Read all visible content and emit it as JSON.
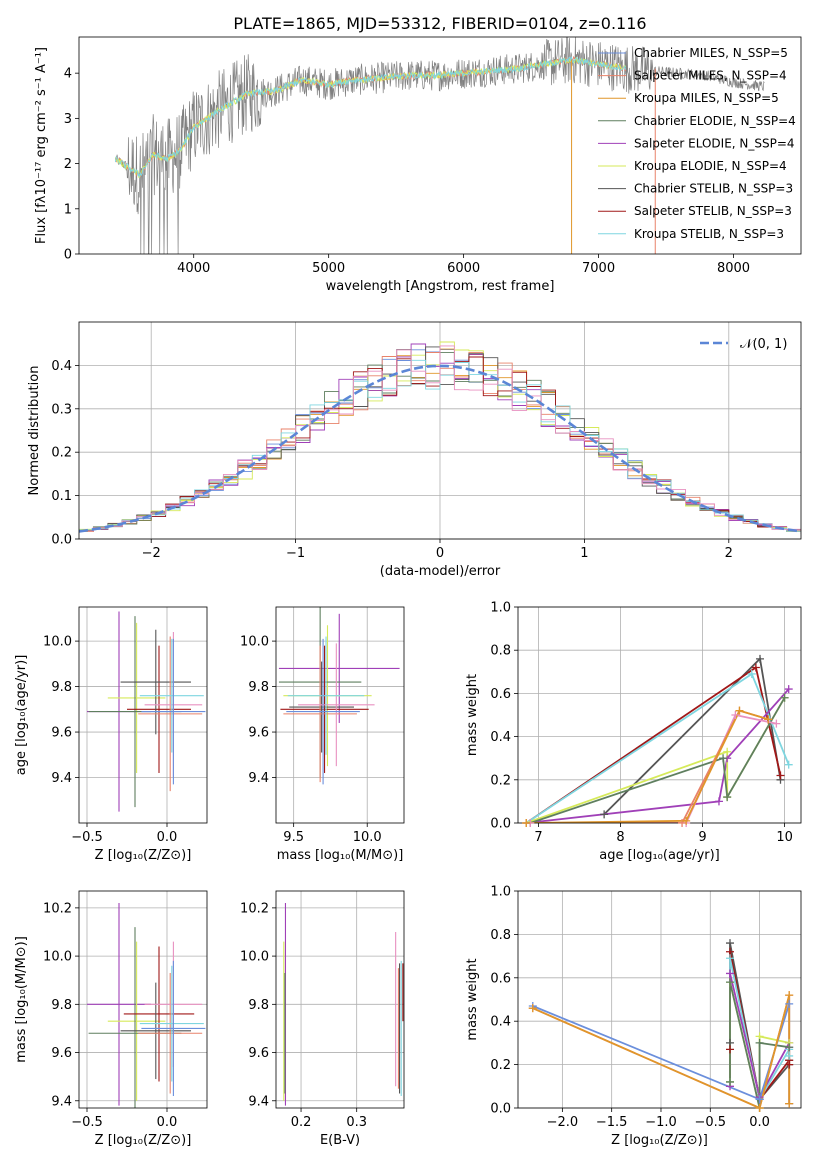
{
  "colors": {
    "chabrier_miles": "#6b8fdc",
    "salpeter_miles": "#e8826a",
    "kroupa_miles": "#e0962a",
    "chabrier_elodie": "#5f7f5f",
    "salpeter_elodie": "#a040b8",
    "kroupa_elodie": "#d6ea5a",
    "chabrier_stelib": "#555555",
    "salpeter_stelib": "#a01818",
    "kroupa_stelib": "#7fd6e0",
    "spectrum": "#808080",
    "pink": "#e890c0",
    "grid": "#b0b0b0",
    "normal": "#5b86d6"
  },
  "chart_data": [
    {
      "id": "spectrum",
      "type": "line",
      "title": "PLATE=1865, MJD=53312, FIBERID=0104, z=0.116",
      "xlabel": "wavelength [Angstrom, rest frame]",
      "ylabel": "Flux [fλ10⁻¹⁷ erg cm⁻² s⁻¹ A⁻¹]",
      "xlim": [
        3150,
        8500
      ],
      "ylim": [
        0,
        4.8
      ],
      "xticks": [
        4000,
        5000,
        6000,
        7000,
        8000
      ],
      "yticks": [
        0,
        1,
        2,
        3,
        4
      ],
      "legend": [
        {
          "label": "Chabrier MILES, N_SSP=5",
          "color_key": "chabrier_miles"
        },
        {
          "label": "Salpeter MILES, N_SSP=4",
          "color_key": "salpeter_miles"
        },
        {
          "label": "Kroupa MILES, N_SSP=5",
          "color_key": "kroupa_miles"
        },
        {
          "label": "Chabrier ELODIE, N_SSP=4",
          "color_key": "chabrier_elodie"
        },
        {
          "label": "Salpeter ELODIE, N_SSP=4",
          "color_key": "salpeter_elodie"
        },
        {
          "label": "Kroupa ELODIE, N_SSP=4",
          "color_key": "kroupa_elodie"
        },
        {
          "label": "Chabrier STELIB, N_SSP=3",
          "color_key": "chabrier_stelib"
        },
        {
          "label": "Salpeter STELIB, N_SSP=3",
          "color_key": "salpeter_stelib"
        },
        {
          "label": "Kroupa STELIB, N_SSP=3",
          "color_key": "kroupa_stelib"
        }
      ],
      "legend_position": "right",
      "grid": false,
      "data_x_range": [
        3420,
        8230
      ],
      "continuum": {
        "x": [
          3420,
          3600,
          3700,
          3800,
          3900,
          4000,
          4200,
          4400,
          4600,
          4800,
          5000,
          5200,
          5400,
          5600,
          5800,
          6000,
          6200,
          6400,
          6600,
          6800,
          7000,
          7200,
          7400,
          7600,
          7800,
          8000,
          8230
        ],
        "y": [
          2.1,
          1.75,
          2.2,
          2.1,
          2.3,
          2.8,
          3.2,
          3.55,
          3.6,
          3.85,
          3.75,
          3.85,
          3.9,
          3.95,
          3.95,
          4.0,
          4.05,
          4.1,
          4.2,
          4.3,
          4.2,
          4.1,
          4.05,
          4.0,
          3.95,
          3.8,
          3.7
        ]
      }
    },
    {
      "id": "residuals",
      "type": "line",
      "xlabel": "(data-model)/error",
      "ylabel": "Normed distribution",
      "xlim": [
        -2.5,
        2.5
      ],
      "ylim": [
        0,
        0.5
      ],
      "xticks": [
        -2,
        -1,
        0,
        1,
        2
      ],
      "xtick_labels": [
        "−2",
        "−1",
        "0",
        "1",
        "2"
      ],
      "yticks": [
        0.0,
        0.1,
        0.2,
        0.3,
        0.4
      ],
      "ytick_labels": [
        "0.0",
        "0.1",
        "0.2",
        "0.3",
        "0.4"
      ],
      "legend": [
        {
          "label": "𝒩(0, 1)",
          "color_key": "normal"
        }
      ],
      "legend_position": "top-right",
      "grid": true
    },
    {
      "id": "age_vs_Z",
      "type": "scatter",
      "xlabel": "Z [log₁₀(Z/Z⊙)]",
      "ylabel": "age  [log₁₀(age/yr)]",
      "xlim": [
        -0.55,
        0.25
      ],
      "ylim": [
        9.2,
        10.15
      ],
      "xticks": [
        -0.5,
        0.0
      ],
      "xtick_labels": [
        "−0.5",
        "0.0"
      ],
      "yticks": [
        9.4,
        9.6,
        9.8,
        10.0
      ],
      "ytick_labels": [
        "9.4",
        "9.6",
        "9.8",
        "10.0"
      ],
      "grid": true,
      "points": [
        {
          "color_key": "salpeter_elodie",
          "x": -0.3,
          "y": 9.69,
          "xerr": 0.2,
          "yerr": 0.44
        },
        {
          "color_key": "kroupa_elodie",
          "x": -0.19,
          "y": 9.75,
          "xerr": 0.18,
          "yerr": 0.33
        },
        {
          "color_key": "chabrier_elodie",
          "x": -0.2,
          "y": 9.69,
          "xerr": 0.29,
          "yerr": 0.42
        },
        {
          "color_key": "salpeter_stelib",
          "x": -0.05,
          "y": 9.7,
          "xerr": 0.2,
          "yerr": 0.28
        },
        {
          "color_key": "chabrier_stelib",
          "x": -0.07,
          "y": 9.82,
          "xerr": 0.22,
          "yerr": 0.23
        },
        {
          "color_key": "salpeter_miles",
          "x": 0.02,
          "y": 9.68,
          "xerr": 0.2,
          "yerr": 0.34
        },
        {
          "color_key": "pink",
          "x": 0.04,
          "y": 9.72,
          "xerr": 0.18,
          "yerr": 0.32
        },
        {
          "color_key": "kroupa_stelib",
          "x": 0.03,
          "y": 9.76,
          "xerr": 0.2,
          "yerr": 0.25
        },
        {
          "color_key": "chabrier_miles",
          "x": 0.04,
          "y": 9.69,
          "xerr": 0.2,
          "yerr": 0.32
        }
      ]
    },
    {
      "id": "age_vs_mass",
      "type": "scatter",
      "xlabel": "mass [log₁₀(M/M⊙)]",
      "ylabel": "",
      "xlim": [
        9.38,
        10.25
      ],
      "ylim": [
        9.2,
        10.15
      ],
      "xticks": [
        9.5,
        10.0
      ],
      "xtick_labels": [
        "9.5",
        "10.0"
      ],
      "yticks": [
        9.4,
        9.6,
        9.8,
        10.0
      ],
      "ytick_labels": [
        "9.4",
        "9.6",
        "9.8",
        "10.0"
      ],
      "grid": true,
      "points": [
        {
          "color_key": "salpeter_elodie",
          "x": 9.81,
          "y": 9.88,
          "xerr": 0.41,
          "yerr": 0.24
        },
        {
          "color_key": "kroupa_elodie",
          "x": 9.73,
          "y": 9.76,
          "xerr": 0.3,
          "yerr": 0.31
        },
        {
          "color_key": "chabrier_elodie",
          "x": 9.68,
          "y": 9.82,
          "xerr": 0.28,
          "yerr": 0.42
        },
        {
          "color_key": "salpeter_stelib",
          "x": 9.71,
          "y": 9.7,
          "xerr": 0.3,
          "yerr": 0.28
        },
        {
          "color_key": "chabrier_stelib",
          "x": 9.69,
          "y": 9.71,
          "xerr": 0.22,
          "yerr": 0.2
        },
        {
          "color_key": "salpeter_miles",
          "x": 9.68,
          "y": 9.68,
          "xerr": 0.25,
          "yerr": 0.3
        },
        {
          "color_key": "pink",
          "x": 9.79,
          "y": 9.72,
          "xerr": 0.26,
          "yerr": 0.27
        },
        {
          "color_key": "kroupa_stelib",
          "x": 9.72,
          "y": 9.76,
          "xerr": 0.26,
          "yerr": 0.26
        },
        {
          "color_key": "chabrier_miles",
          "x": 9.7,
          "y": 9.69,
          "xerr": 0.25,
          "yerr": 0.32
        }
      ]
    },
    {
      "id": "massweight_vs_age",
      "type": "line",
      "xlabel": "age  [log₁₀(age/yr)]",
      "ylabel": "mass weight",
      "xlim": [
        6.75,
        10.2
      ],
      "ylim": [
        0,
        1.0
      ],
      "xticks": [
        7,
        8,
        9,
        10
      ],
      "xtick_labels": [
        "7",
        "8",
        "9",
        "10"
      ],
      "yticks": [
        0.0,
        0.2,
        0.4,
        0.6,
        0.8,
        1.0
      ],
      "ytick_labels": [
        "0.0",
        "0.2",
        "0.4",
        "0.6",
        "0.8",
        "1.0"
      ],
      "grid": true,
      "series": [
        {
          "color_key": "chabrier_stelib",
          "x": [
            7.8,
            9.7,
            9.95
          ],
          "y": [
            0.04,
            0.76,
            0.2
          ]
        },
        {
          "color_key": "salpeter_stelib",
          "x": [
            6.85,
            9.65,
            9.95
          ],
          "y": [
            0.0,
            0.72,
            0.22
          ]
        },
        {
          "color_key": "kroupa_stelib",
          "x": [
            6.85,
            9.6,
            10.05
          ],
          "y": [
            0.0,
            0.69,
            0.27
          ]
        },
        {
          "color_key": "salpeter_elodie",
          "x": [
            6.85,
            9.2,
            9.3,
            10.05
          ],
          "y": [
            0.0,
            0.1,
            0.3,
            0.62
          ]
        },
        {
          "color_key": "kroupa_elodie",
          "x": [
            6.85,
            9.3,
            9.3,
            10.0
          ],
          "y": [
            0.0,
            0.33,
            0.12,
            0.58
          ]
        },
        {
          "color_key": "chabrier_elodie",
          "x": [
            6.9,
            9.25,
            9.3,
            10.0
          ],
          "y": [
            0.0,
            0.3,
            0.12,
            0.58
          ]
        },
        {
          "color_key": "pink",
          "x": [
            6.9,
            8.8,
            9.4,
            9.9
          ],
          "y": [
            0.0,
            0.0,
            0.5,
            0.46
          ]
        },
        {
          "color_key": "salpeter_miles",
          "x": [
            6.85,
            8.75,
            9.45,
            9.8
          ],
          "y": [
            0.0,
            0.0,
            0.52,
            0.48
          ]
        },
        {
          "color_key": "kroupa_miles",
          "x": [
            6.85,
            8.8,
            9.45,
            9.8
          ],
          "y": [
            0.0,
            0.01,
            0.52,
            0.48
          ]
        }
      ]
    },
    {
      "id": "mass_vs_Z",
      "type": "scatter",
      "xlabel": "Z [log₁₀(Z/Z⊙)]",
      "ylabel": "mass [log₁₀(M/M⊙)]",
      "xlim": [
        -0.55,
        0.25
      ],
      "ylim": [
        9.37,
        10.27
      ],
      "xticks": [
        -0.5,
        0.0
      ],
      "xtick_labels": [
        "−0.5",
        "0.0"
      ],
      "yticks": [
        9.4,
        9.6,
        9.8,
        10.0,
        10.2
      ],
      "ytick_labels": [
        "9.4",
        "9.6",
        "9.8",
        "10.0",
        "10.2"
      ],
      "grid": true,
      "points": [
        {
          "color_key": "salpeter_elodie",
          "x": -0.3,
          "y": 9.8,
          "xerr": 0.2,
          "yerr": 0.42
        },
        {
          "color_key": "kroupa_elodie",
          "x": -0.19,
          "y": 9.73,
          "xerr": 0.18,
          "yerr": 0.33
        },
        {
          "color_key": "chabrier_elodie",
          "x": -0.2,
          "y": 9.68,
          "xerr": 0.29,
          "yerr": 0.44
        },
        {
          "color_key": "salpeter_stelib",
          "x": -0.05,
          "y": 9.76,
          "xerr": 0.22,
          "yerr": 0.28
        },
        {
          "color_key": "chabrier_stelib",
          "x": -0.07,
          "y": 9.69,
          "xerr": 0.22,
          "yerr": 0.2
        },
        {
          "color_key": "salpeter_miles",
          "x": 0.02,
          "y": 9.68,
          "xerr": 0.2,
          "yerr": 0.25
        },
        {
          "color_key": "pink",
          "x": 0.04,
          "y": 9.8,
          "xerr": 0.18,
          "yerr": 0.26
        },
        {
          "color_key": "kroupa_stelib",
          "x": 0.03,
          "y": 9.72,
          "xerr": 0.2,
          "yerr": 0.24
        },
        {
          "color_key": "chabrier_miles",
          "x": 0.04,
          "y": 9.7,
          "xerr": 0.2,
          "yerr": 0.28
        }
      ]
    },
    {
      "id": "mass_vs_EBV",
      "type": "scatter",
      "xlabel": "E(B-V)",
      "ylabel": "",
      "xlim": [
        0.155,
        0.385
      ],
      "ylim": [
        9.37,
        10.27
      ],
      "xticks": [
        0.2,
        0.3
      ],
      "xtick_labels": [
        "0.2",
        "0.3"
      ],
      "yticks": [
        9.4,
        9.6,
        9.8,
        10.0,
        10.2
      ],
      "ytick_labels": [
        "9.4",
        "9.6",
        "9.8",
        "10.0",
        "10.2"
      ],
      "grid": true,
      "points": [
        {
          "color_key": "salpeter_elodie",
          "x": 0.172,
          "y": 9.8,
          "xerr": 0.0,
          "yerr": 0.42
        },
        {
          "color_key": "kroupa_elodie",
          "x": 0.169,
          "y": 9.73,
          "xerr": 0.0,
          "yerr": 0.33
        },
        {
          "color_key": "chabrier_elodie",
          "x": 0.171,
          "y": 9.68,
          "xerr": 0.0,
          "yerr": 0.25
        },
        {
          "color_key": "pink",
          "x": 0.37,
          "y": 9.78,
          "xerr": 0.0,
          "yerr": 0.32
        },
        {
          "color_key": "salpeter_miles",
          "x": 0.375,
          "y": 9.7,
          "xerr": 0.0,
          "yerr": 0.25
        },
        {
          "color_key": "chabrier_stelib",
          "x": 0.377,
          "y": 9.7,
          "xerr": 0.0,
          "yerr": 0.27
        },
        {
          "color_key": "kroupa_stelib",
          "x": 0.38,
          "y": 9.7,
          "xerr": 0.0,
          "yerr": 0.28
        },
        {
          "color_key": "salpeter_stelib",
          "x": 0.383,
          "y": 9.85,
          "xerr": 0.0,
          "yerr": 0.12
        }
      ]
    },
    {
      "id": "massweight_vs_Z",
      "type": "line",
      "xlabel": "Z [log₁₀(Z/Z⊙)]",
      "ylabel": "mass weight",
      "xlim": [
        -2.45,
        0.42
      ],
      "ylim": [
        0,
        1.0
      ],
      "xticks": [
        -2.0,
        -1.5,
        -1.0,
        -0.5,
        0.0
      ],
      "xtick_labels": [
        "−2.0",
        "−1.5",
        "−1.0",
        "−0.5",
        "0.0"
      ],
      "yticks": [
        0.0,
        0.2,
        0.4,
        0.6,
        0.8,
        1.0
      ],
      "ytick_labels": [
        "0.0",
        "0.2",
        "0.4",
        "0.6",
        "0.8",
        "1.0"
      ],
      "grid": true,
      "series": [
        {
          "color_key": "chabrier_stelib",
          "x": [
            -0.3,
            -0.3,
            0.0,
            0.3,
            0.3
          ],
          "y": [
            0.3,
            0.76,
            0.04,
            0.2,
            0.22
          ]
        },
        {
          "color_key": "salpeter_stelib",
          "x": [
            -0.3,
            -0.3,
            0.0,
            0.3,
            0.3
          ],
          "y": [
            0.27,
            0.72,
            0.04,
            0.22,
            0.2
          ]
        },
        {
          "color_key": "kroupa_stelib",
          "x": [
            -0.3,
            -0.3,
            0.0,
            0.3,
            0.3
          ],
          "y": [
            0.12,
            0.69,
            0.04,
            0.27,
            0.24
          ]
        },
        {
          "color_key": "salpeter_elodie",
          "x": [
            -0.3,
            -0.3,
            0.0,
            0.3,
            0.3
          ],
          "y": [
            0.1,
            0.62,
            0.05,
            0.3,
            0.28
          ]
        },
        {
          "color_key": "kroupa_elodie",
          "x": [
            -0.3,
            -0.3,
            0.0,
            0.0,
            0.3
          ],
          "y": [
            0.12,
            0.58,
            0.0,
            0.33,
            0.3
          ]
        },
        {
          "color_key": "chabrier_elodie",
          "x": [
            -0.3,
            -0.3,
            0.0,
            0.0,
            0.3
          ],
          "y": [
            0.12,
            0.58,
            0.0,
            0.3,
            0.28
          ]
        },
        {
          "color_key": "chabrier_miles",
          "x": [
            -2.3,
            0.0,
            0.3,
            0.3
          ],
          "y": [
            0.47,
            0.04,
            0.48,
            0.02
          ]
        },
        {
          "color_key": "salpeter_miles",
          "x": [
            -2.3,
            0.0,
            0.3,
            0.3
          ],
          "y": [
            0.46,
            0.0,
            0.52,
            0.02
          ]
        },
        {
          "color_key": "kroupa_miles",
          "x": [
            -2.3,
            0.0,
            0.3,
            0.3
          ],
          "y": [
            0.46,
            0.0,
            0.52,
            0.02
          ]
        }
      ]
    }
  ]
}
